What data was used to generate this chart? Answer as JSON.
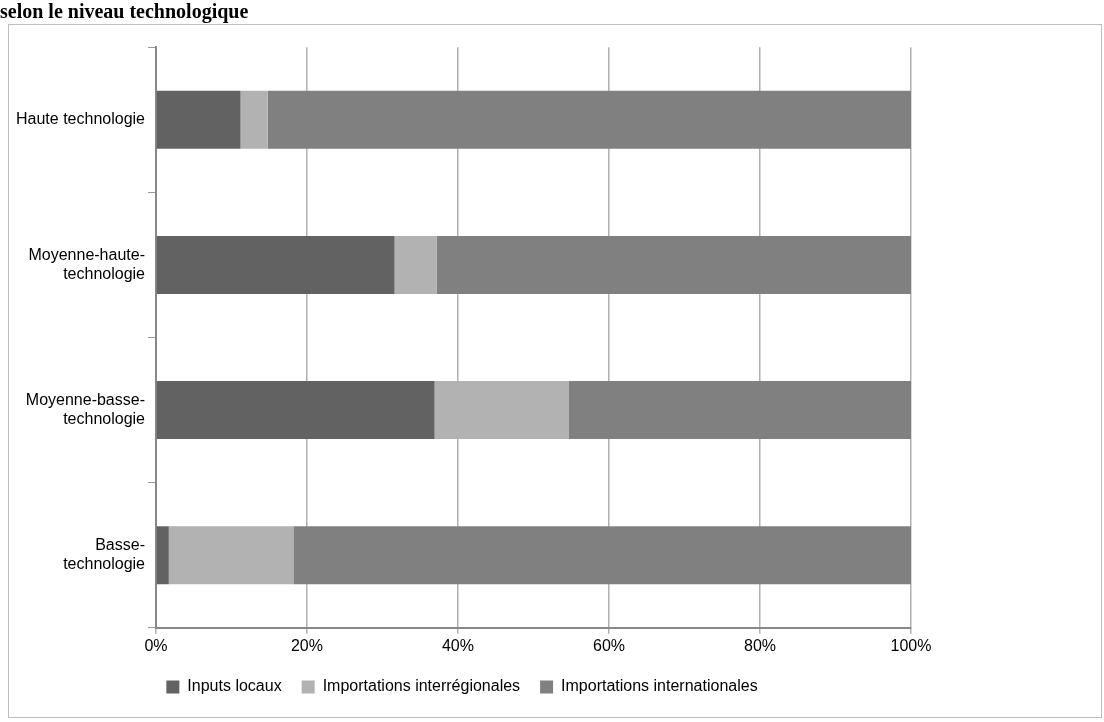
{
  "chart_data": {
    "type": "bar",
    "title": "selon le niveau technologique",
    "orientation": "horizontal",
    "stacked": true,
    "categories": [
      "Haute technologie",
      "Moyenne-haute-technologie",
      "Moyenne-basse-technologie",
      "Basse-technologie"
    ],
    "series": [
      {
        "name": "Inputs locaux",
        "color": "#626262",
        "values": [
          11.2,
          31.6,
          36.9,
          1.7
        ]
      },
      {
        "name": "Importations interrégionales",
        "color": "#b2b2b2",
        "values": [
          3.6,
          5.6,
          17.8,
          16.5
        ]
      },
      {
        "name": "Importations internationales",
        "color": "#808080",
        "values": [
          85.2,
          62.8,
          45.3,
          81.8
        ]
      }
    ],
    "xlim": [
      0,
      100
    ],
    "xticks": [
      {
        "value": 0,
        "label": "0%"
      },
      {
        "value": 20,
        "label": "20%"
      },
      {
        "value": 40,
        "label": "40%"
      },
      {
        "value": 60,
        "label": "60%"
      },
      {
        "value": 80,
        "label": "80%"
      },
      {
        "value": 100,
        "label": "100%"
      }
    ],
    "grid": "x",
    "legend": "bottom"
  }
}
